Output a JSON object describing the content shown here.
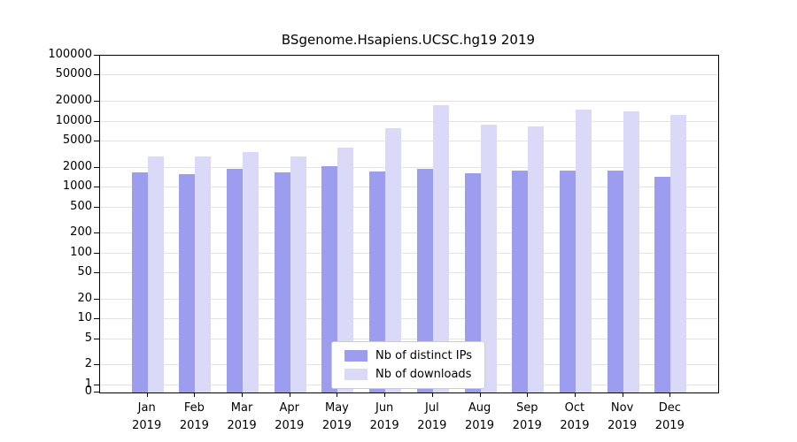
{
  "chart_data": {
    "type": "bar",
    "title": "BSgenome.Hsapiens.UCSC.hg19 2019",
    "categories": [
      "Jan",
      "Feb",
      "Mar",
      "Apr",
      "May",
      "Jun",
      "Jul",
      "Aug",
      "Sep",
      "Oct",
      "Nov",
      "Dec"
    ],
    "year": "2019",
    "series": [
      {
        "name": "Nb of distinct IPs",
        "color": "#9d9df0",
        "values": [
          1700,
          1600,
          1900,
          1700,
          2100,
          1750,
          1950,
          1650,
          1800,
          1800,
          1800,
          1450
        ]
      },
      {
        "name": "Nb of downloads",
        "color": "#dadaf8",
        "values": [
          3000,
          3000,
          3500,
          3000,
          4000,
          8000,
          18000,
          9000,
          8500,
          15000,
          14500,
          12500
        ]
      }
    ],
    "yticks": [
      0,
      1,
      2,
      5,
      10,
      20,
      50,
      100,
      200,
      500,
      1000,
      2000,
      5000,
      10000,
      20000,
      50000,
      100000
    ],
    "yscale": "log",
    "ylim": [
      0,
      100000
    ],
    "xlabel": "",
    "ylabel": "",
    "grid": "horizontal",
    "legend_position": "lower center"
  },
  "colors": {
    "background": "#ffffff",
    "axis": "#000000",
    "grid": "#e3e3e3",
    "legend_border": "#cccccc",
    "bar_distinct_ips": "#9d9df0",
    "bar_downloads": "#dadaf8"
  }
}
